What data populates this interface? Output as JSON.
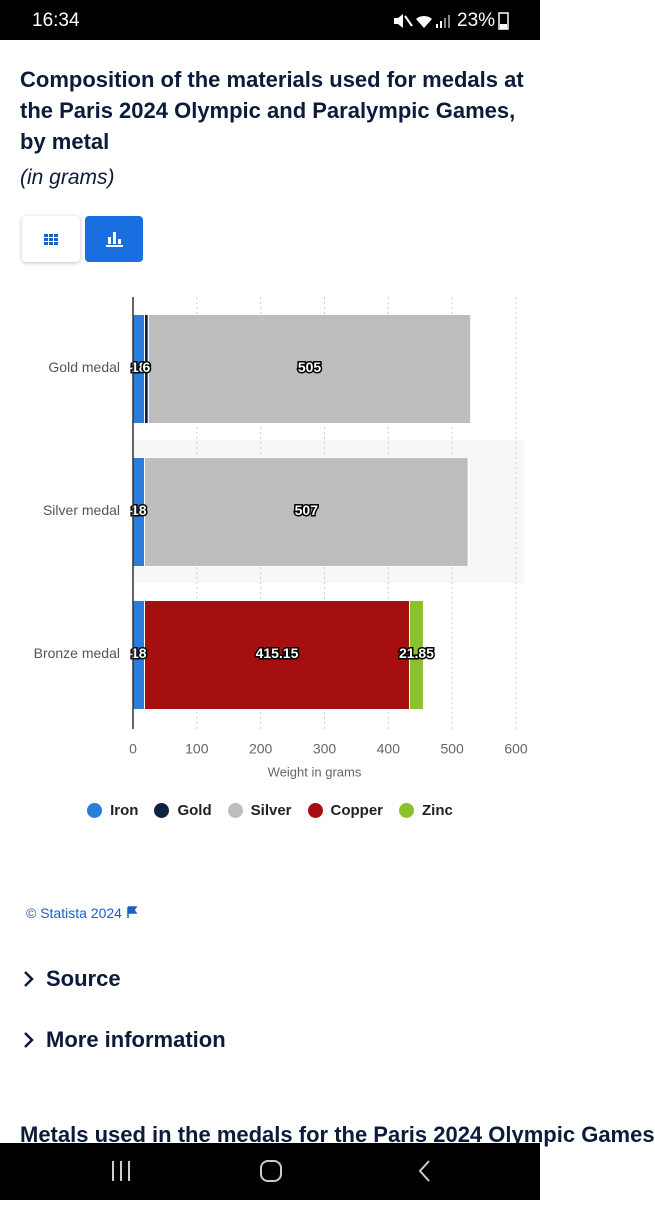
{
  "status_bar": {
    "time": "16:34",
    "battery": "23%"
  },
  "chart_data": {
    "type": "bar",
    "orientation": "horizontal",
    "stacked": true,
    "title": "Composition of the materials used for medals at the Paris 2024 Olympic and Paralympic Games, by metal",
    "subtitle": "(in grams)",
    "x_label": "Weight in grams",
    "categories": [
      "Gold medal",
      "Silver medal",
      "Bronze medal"
    ],
    "series": [
      {
        "name": "Iron",
        "color": "#2b7ddc",
        "values": [
          18,
          18,
          18
        ]
      },
      {
        "name": "Gold",
        "color": "#0b2341",
        "values": [
          6,
          null,
          null
        ]
      },
      {
        "name": "Silver",
        "color": "#bdbdbd",
        "values": [
          505,
          507,
          null
        ]
      },
      {
        "name": "Copper",
        "color": "#a50f10",
        "values": [
          null,
          null,
          415.15
        ]
      },
      {
        "name": "Zinc",
        "color": "#8cc02c",
        "values": [
          null,
          null,
          21.85
        ]
      }
    ],
    "xlim": [
      0,
      600
    ],
    "xticks": [
      0,
      100,
      200,
      300,
      400,
      500,
      600
    ],
    "grid": true
  },
  "footer": {
    "copyright": "© Statista 2024",
    "source": "Source",
    "more_info": "More information",
    "next_heading": "Metals used in the medals for the Paris 2024 Olympic Games"
  }
}
